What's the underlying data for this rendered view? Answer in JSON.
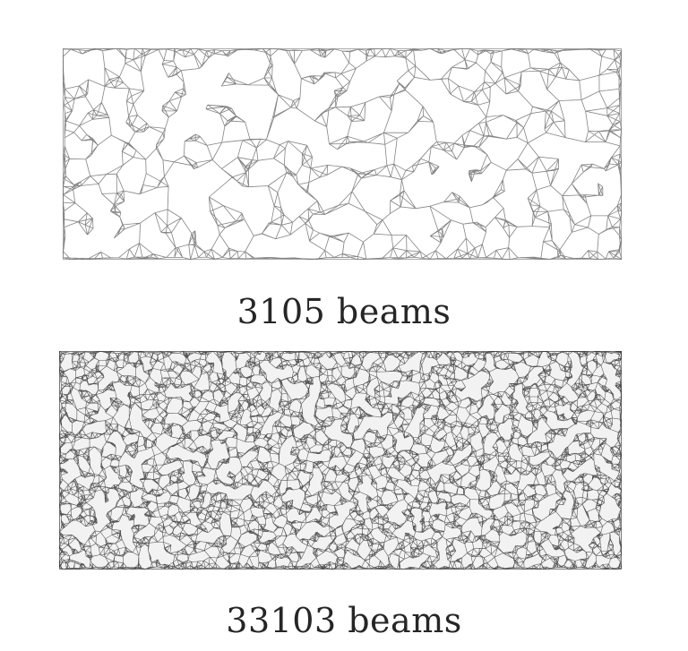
{
  "figure": {
    "top_panel": {
      "caption": "3105 beams",
      "beam_count": 3105,
      "stroke_color": "#6f6f6f"
    },
    "bottom_panel": {
      "caption": "33103 beams",
      "beam_count": 33103,
      "stroke_color": "#2a2a2a"
    },
    "background_color": "#ffffff"
  }
}
